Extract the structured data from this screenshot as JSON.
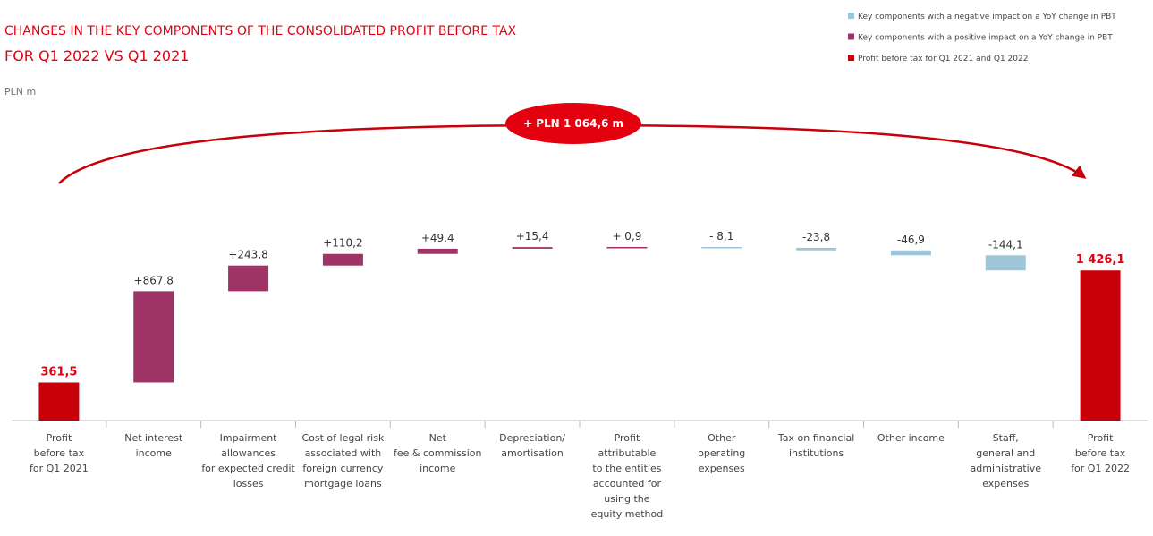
{
  "chart_data": {
    "type": "waterfall",
    "title": [
      "CHANGES IN THE KEY COMPONENTS OF THE CONSOLIDATED PROFIT BEFORE TAX",
      "FOR Q1 2022 VS Q1 2021"
    ],
    "subtitle": "PLN m",
    "annotation": "+ PLN 1 064,6 m",
    "legend": [
      {
        "name": "Key components with a negative impact on a YoY change in PBT",
        "color": "#9fc6d8"
      },
      {
        "name": "Key components with a positive impact on a YoY change in PBT",
        "color": "#9e3466"
      },
      {
        "name": "Profit before tax for Q1 2021 and Q1 2022",
        "color": "#c8000a"
      }
    ],
    "categories": [
      [
        "Profit",
        "before tax",
        "for Q1 2021"
      ],
      [
        "Net interest",
        "income"
      ],
      [
        "Impairment",
        "allowances",
        "for expected credit",
        "losses"
      ],
      [
        "Cost of legal risk",
        "associated with",
        "foreign currency",
        "mortgage loans"
      ],
      [
        "Net",
        "fee & commission",
        "income"
      ],
      [
        "Depreciation/",
        "amortisation"
      ],
      [
        "Profit",
        "attributable",
        "to the entities",
        "accounted for",
        "using the",
        "equity method"
      ],
      [
        "Other",
        "operating",
        "expenses"
      ],
      [
        "Tax on financial",
        "institutions"
      ],
      [
        "Other income"
      ],
      [
        "Staff,",
        "general and",
        "administrative",
        "expenses"
      ],
      [
        "Profit",
        "before tax",
        "for Q1 2022"
      ]
    ],
    "measure": [
      "absolute",
      "relative",
      "relative",
      "relative",
      "relative",
      "relative",
      "relative",
      "relative",
      "relative",
      "relative",
      "relative",
      "total"
    ],
    "values": [
      361.5,
      867.8,
      243.8,
      110.2,
      49.4,
      15.4,
      0.9,
      -8.1,
      -23.8,
      -46.9,
      -144.1,
      1426.1
    ],
    "value_labels": [
      "361,5",
      "+867,8",
      "+243,8",
      "+110,2",
      "+49,4",
      "+15,4",
      "+ 0,9",
      "- 8,1",
      "-23,8",
      "-46,9",
      "-144,1",
      "1 426,1"
    ]
  }
}
